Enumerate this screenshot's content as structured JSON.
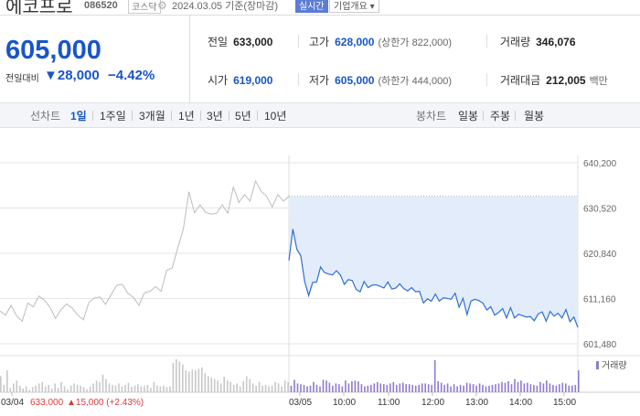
{
  "header": {
    "stock_name": "에코프로",
    "stock_code": "086520",
    "market_badge": "코스닥",
    "date_text": "2024.03.05 기준(장마감)",
    "live_button": "실시간",
    "company_button": "기업개요 ▾"
  },
  "summary": {
    "current_price": "605,000",
    "change_label": "전일대비",
    "change_value": "▼28,000",
    "change_percent": "−4.42%",
    "stats": [
      {
        "label": "전일",
        "value": "633,000",
        "sub": ""
      },
      {
        "label": "고가",
        "value": "628,000",
        "sub": "(상한가 822,000)"
      },
      {
        "label": "거래량",
        "value": "346,076",
        "sub": ""
      },
      {
        "label": "시가",
        "value": "619,000",
        "sub": ""
      },
      {
        "label": "저가",
        "value": "605,000",
        "sub": "(하한가 444,000)"
      },
      {
        "label": "거래대금",
        "value": "212,005",
        "sub": "백만"
      }
    ]
  },
  "toolbar": {
    "line_label": "선차트",
    "periods": [
      "1일",
      "1주일",
      "3개월",
      "1년",
      "3년",
      "5년",
      "10년"
    ],
    "candle_label": "봉차트",
    "candles": [
      "일봉",
      "주봉",
      "월봉"
    ]
  },
  "colors": {
    "accent": "#1955c8",
    "fill": "#e3ecfb",
    "line": "#2f6fd3",
    "prev_line": "#bcbcbc",
    "up": "#e03a3a",
    "volume": "#8f7bd0"
  },
  "chart_data": {
    "type": "line",
    "y_ticks": [
      "640,200",
      "630,520",
      "620,840",
      "611,160",
      "601,480"
    ],
    "ylim": [
      601480,
      640200
    ],
    "x_labels": [
      "03/04",
      "03/05",
      "10:00",
      "11:00",
      "12:00",
      "13:00",
      "14:00",
      "15:00"
    ],
    "prev_day_summary": {
      "date": "03/04",
      "close": "633,000",
      "change": "▲15,000 (+2.43%)"
    },
    "volume_label": "거래량",
    "series": [
      {
        "values": [
          608500,
          607600,
          609700,
          607400,
          606300,
          610200,
          609400,
          611700,
          610800,
          609300,
          606900,
          608800,
          610000,
          609100,
          607600,
          606600,
          610300,
          611300,
          611500,
          609900,
          612000,
          614000,
          614200,
          612300,
          611400,
          609700,
          612400,
          612700,
          613700,
          612700,
          617200,
          617700,
          622000,
          626000,
          634000,
          629500,
          631200,
          629600,
          629200,
          629400,
          631200,
          629400,
          635000,
          631700,
          633400,
          632000,
          636300,
          634100,
          633000,
          630700,
          633400,
          632000,
          633000
        ]
      },
      {
        "values": [
          619300,
          626000,
          621700,
          620300,
          614700,
          611800,
          614600,
          614700,
          617900,
          616700,
          616400,
          616200,
          617100,
          616200,
          614200,
          615200,
          615000,
          613100,
          612600,
          614800,
          613500,
          614000,
          614100,
          613800,
          613400,
          614700,
          613200,
          613400,
          614300,
          613300,
          612800,
          613500,
          612600,
          612700,
          610200,
          611100,
          610600,
          612100,
          610600,
          611300,
          611200,
          611000,
          612300,
          609300,
          611200,
          607700,
          610600,
          611000,
          610700,
          610200,
          608700,
          609400,
          607600,
          608200,
          609000,
          607000,
          609200,
          607000,
          607800,
          607500,
          607200,
          607300,
          606400,
          607900,
          608300,
          606300,
          608400,
          607400,
          608000,
          607000,
          608800,
          606200,
          607200,
          605000
        ]
      }
    ],
    "volume": [
      22,
      10,
      30,
      6,
      12,
      16,
      9,
      5,
      8,
      3,
      7,
      9,
      12,
      14,
      8,
      10,
      5,
      12,
      6,
      14,
      8,
      4,
      9,
      12,
      10,
      9,
      7,
      4,
      8,
      12,
      16,
      14,
      24,
      18,
      12,
      10,
      9,
      12,
      8,
      10,
      13,
      7,
      9,
      11,
      8,
      9,
      10,
      6,
      14,
      9,
      8,
      9,
      7,
      8,
      40,
      45,
      42,
      38,
      30,
      28,
      31,
      30,
      32,
      34,
      26,
      22,
      20,
      18,
      16,
      12,
      21,
      16,
      14,
      10,
      12,
      8,
      15,
      22,
      18,
      12,
      9,
      14,
      9,
      10,
      8,
      9,
      14,
      12,
      8,
      16,
      14,
      9,
      17,
      12,
      11,
      10,
      8,
      9,
      14,
      10,
      8,
      17,
      16,
      13,
      9,
      12,
      11,
      8,
      16,
      12,
      15,
      16,
      15,
      11,
      8,
      9,
      10,
      12,
      14,
      12,
      11,
      10,
      12,
      14,
      10,
      12,
      13,
      11,
      11,
      10,
      9,
      10,
      12,
      12,
      11,
      10,
      44,
      15,
      13,
      10,
      12,
      8,
      11,
      8,
      10,
      9,
      13,
      12,
      11,
      9,
      12,
      10,
      8,
      9,
      10,
      11,
      12,
      14,
      13,
      15,
      11,
      18,
      14,
      16,
      12,
      13,
      11,
      10,
      9,
      14,
      12,
      16,
      12,
      10,
      9,
      11,
      13,
      12,
      9,
      9,
      10,
      30
    ]
  }
}
